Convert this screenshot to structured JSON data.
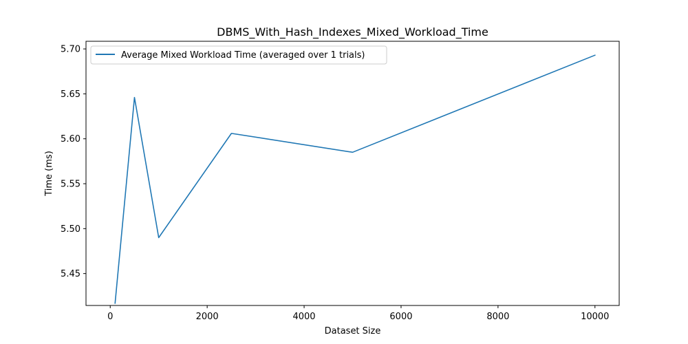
{
  "chart_data": {
    "type": "line",
    "title": "DBMS_With_Hash_Indexes_Mixed_Workload_Time",
    "xlabel": "Dataset Size",
    "ylabel": "Time (ms)",
    "xlim": [
      -500,
      10500
    ],
    "ylim": [
      5.4145,
      5.7085
    ],
    "x_ticks": [
      0,
      2000,
      4000,
      6000,
      8000,
      10000
    ],
    "x_tick_labels": [
      "0",
      "2000",
      "4000",
      "6000",
      "8000",
      "10000"
    ],
    "y_ticks": [
      5.45,
      5.5,
      5.55,
      5.6,
      5.65,
      5.7
    ],
    "y_tick_labels": [
      "5.45",
      "5.50",
      "5.55",
      "5.60",
      "5.65",
      "5.70"
    ],
    "grid": false,
    "legend_position": "top-left",
    "series": [
      {
        "name": "Average Mixed Workload Time (averaged over 1 trials)",
        "color": "#1f77b4",
        "x": [
          100,
          500,
          1000,
          2500,
          5000,
          10000
        ],
        "y": [
          5.417,
          5.646,
          5.49,
          5.606,
          5.585,
          5.693
        ]
      }
    ]
  }
}
